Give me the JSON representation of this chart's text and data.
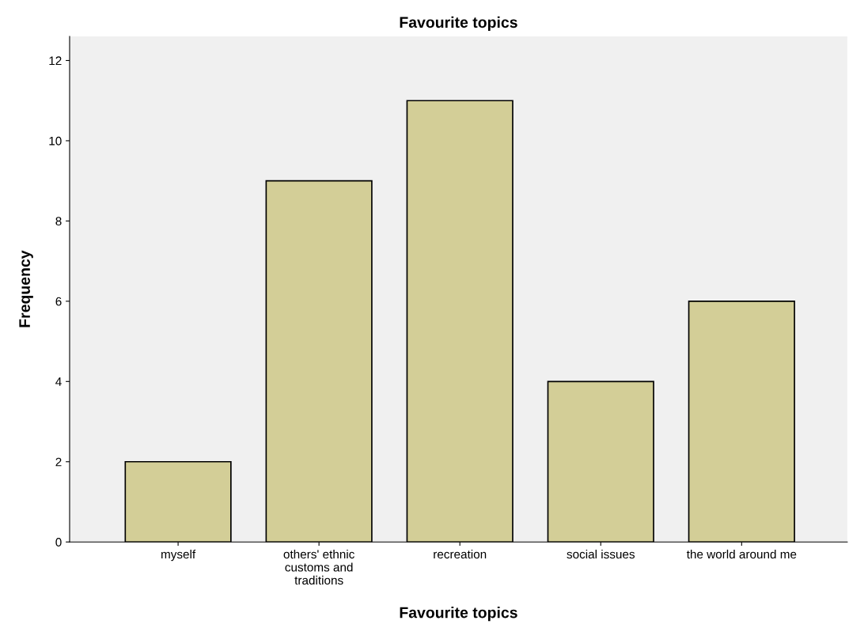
{
  "chart_data": {
    "type": "bar",
    "title": "Favourite topics",
    "xlabel": "Favourite topics",
    "ylabel": "Frequency",
    "categories": [
      "myself",
      "others' ethnic\ncustoms and\ntraditions",
      "recreation",
      "social issues",
      "the world around me"
    ],
    "values": [
      2,
      9,
      11,
      4,
      6
    ],
    "color": "#d3ce97",
    "ylim": [
      0,
      12.6
    ],
    "yticks": [
      0,
      2,
      4,
      6,
      8,
      10,
      12
    ],
    "grid": false
  }
}
